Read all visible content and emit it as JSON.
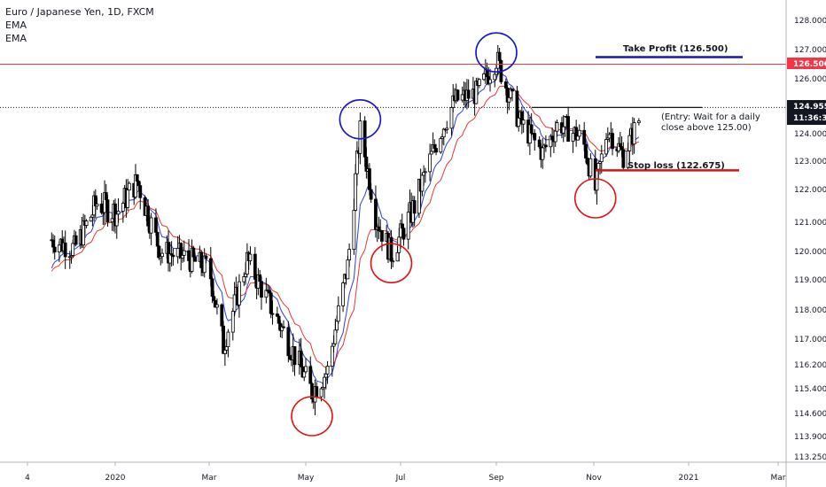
{
  "legend": {
    "title": "Euro / Japanese Yen, 1D, FXCM",
    "ema1": "EMA",
    "ema2": "EMA"
  },
  "annotations": {
    "take_profit": "Take Profit (126.500)",
    "stop_loss": "Stop loss (122.675)",
    "entry_line1": "(Entry: Wait for a daily",
    "entry_line2": "close above 125.00)"
  },
  "price_tags": {
    "take_profit_level": "126.500",
    "last_price": "124.955",
    "countdown": "11:36:31"
  },
  "colors": {
    "take_profit": "#1a1aa6",
    "stop_loss": "#d41515",
    "resistance": "#f23645",
    "ema_fast": "#2c3fd8",
    "ema_slow": "#e53935",
    "circle_top": "#1515c8",
    "circle_bottom": "#e01515"
  },
  "chart_data": {
    "type": "candlestick",
    "title": "Euro / Japanese Yen, 1D, FXCM",
    "x_ticks": [
      "4",
      "2020",
      "Mar",
      "May",
      "Jul",
      "Sep",
      "Nov",
      "2021",
      "Mar"
    ],
    "y_ticks": [
      "128.000",
      "127.000",
      "126.000",
      "125.000",
      "124.000",
      "123.000",
      "122.000",
      "121.000",
      "120.000",
      "119.000",
      "118.000",
      "117.000",
      "116.200",
      "115.400",
      "114.600",
      "113.900",
      "113.250"
    ],
    "ylim": [
      113.0,
      128.6
    ],
    "levels": {
      "take_profit": 126.5,
      "resistance": 126.5,
      "entry_dotted": 124.955,
      "stop_loss": 122.675,
      "swing_high_line": 124.955
    },
    "price_path": [
      {
        "date": "2019-11-20",
        "close": 120.4
      },
      {
        "date": "2019-12-05",
        "close": 120.1
      },
      {
        "date": "2019-12-20",
        "close": 121.6
      },
      {
        "date": "2020-01-02",
        "close": 121.3
      },
      {
        "date": "2020-01-15",
        "close": 122.3
      },
      {
        "date": "2020-01-30",
        "close": 120.0
      },
      {
        "date": "2020-02-14",
        "close": 119.8
      },
      {
        "date": "2020-03-01",
        "close": 119.4
      },
      {
        "date": "2020-03-10",
        "close": 116.8
      },
      {
        "date": "2020-03-25",
        "close": 119.7
      },
      {
        "date": "2020-04-10",
        "close": 118.0
      },
      {
        "date": "2020-04-25",
        "close": 116.4
      },
      {
        "date": "2020-05-05",
        "close": 115.3
      },
      {
        "date": "2020-05-15",
        "close": 116.0
      },
      {
        "date": "2020-05-28",
        "close": 119.5
      },
      {
        "date": "2020-06-05",
        "close": 124.1
      },
      {
        "date": "2020-06-15",
        "close": 121.2
      },
      {
        "date": "2020-06-25",
        "close": 119.9
      },
      {
        "date": "2020-07-10",
        "close": 121.5
      },
      {
        "date": "2020-07-25",
        "close": 123.8
      },
      {
        "date": "2020-08-05",
        "close": 125.2
      },
      {
        "date": "2020-08-20",
        "close": 125.5
      },
      {
        "date": "2020-09-01",
        "close": 126.7
      },
      {
        "date": "2020-09-15",
        "close": 124.5
      },
      {
        "date": "2020-09-30",
        "close": 123.3
      },
      {
        "date": "2020-10-10",
        "close": 124.4
      },
      {
        "date": "2020-10-25",
        "close": 123.8
      },
      {
        "date": "2020-11-02",
        "close": 122.0
      },
      {
        "date": "2020-11-10",
        "close": 124.2
      },
      {
        "date": "2020-11-20",
        "close": 123.2
      },
      {
        "date": "2020-11-30",
        "close": 124.5
      }
    ],
    "highlighted_swings": [
      {
        "date": "2020-05-05",
        "price": 114.8,
        "type": "low"
      },
      {
        "date": "2020-06-05",
        "price": 124.2,
        "type": "high"
      },
      {
        "date": "2020-06-25",
        "price": 119.9,
        "type": "low"
      },
      {
        "date": "2020-09-01",
        "price": 126.6,
        "type": "high"
      },
      {
        "date": "2020-11-02",
        "price": 122.0,
        "type": "low"
      }
    ]
  }
}
